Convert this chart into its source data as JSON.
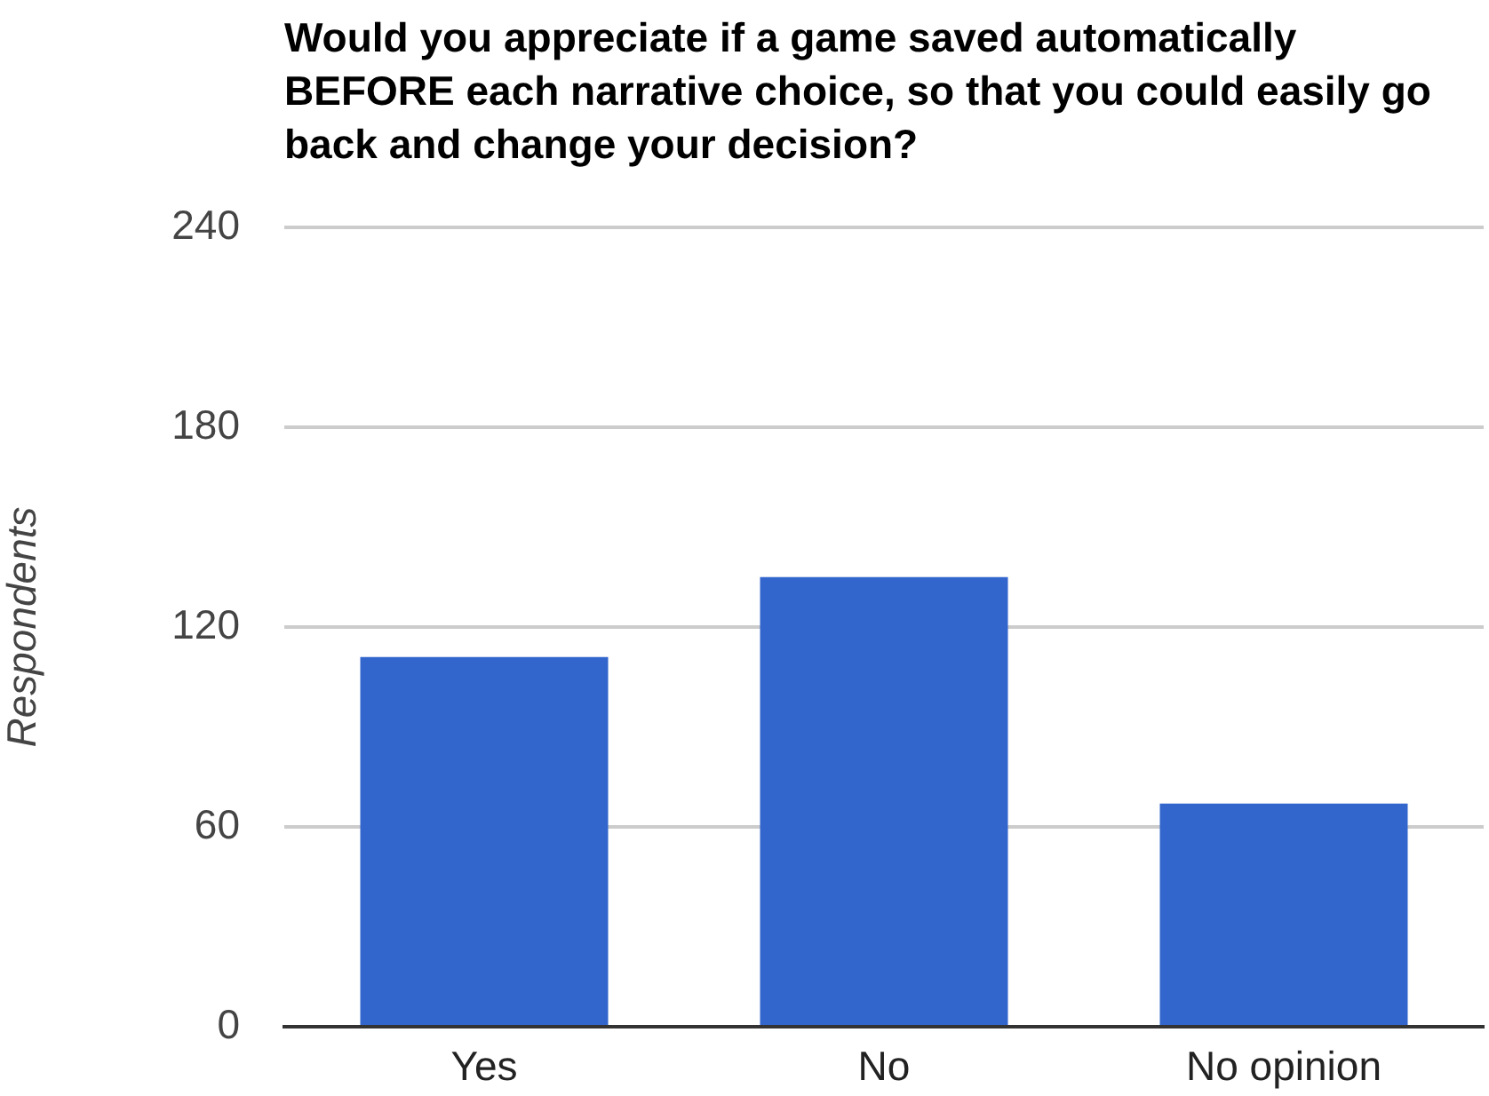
{
  "chart_data": {
    "type": "bar",
    "title": "Would you appreciate if a game saved automatically BEFORE each narrative choice, so that you could easily go back and change your decision?",
    "ylabel": "Respondents",
    "categories": [
      "Yes",
      "No",
      "No opinion"
    ],
    "values": [
      111,
      135,
      67
    ],
    "color": "#3366cc",
    "ylim": [
      0,
      240
    ],
    "yticks": [
      0,
      60,
      120,
      180,
      240
    ],
    "grid": "y"
  }
}
